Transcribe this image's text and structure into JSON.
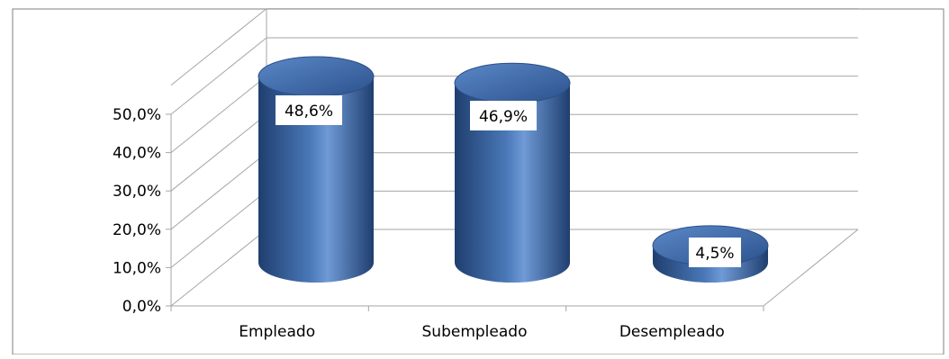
{
  "chart_data": {
    "type": "bar",
    "categories": [
      "Empleado",
      "Subempleado",
      "Desempleado"
    ],
    "values": [
      48.6,
      46.9,
      4.5
    ],
    "data_labels": [
      "48,6%",
      "46,9%",
      "4,5%"
    ],
    "y_ticks": [
      0,
      10,
      20,
      30,
      40,
      50
    ],
    "y_tick_labels": [
      "0,0%",
      "10,0%",
      "20,0%",
      "30,0%",
      "40,0%",
      "50,0%"
    ],
    "ylim": [
      0,
      50
    ],
    "grid": true,
    "legend": false,
    "bar_shape": "cylinder-3d",
    "title": "",
    "xlabel": "",
    "ylabel": "",
    "colors": {
      "bar_dark": "#1f3e6e",
      "bar_mid": "#4a78b8",
      "bar_light": "#6f9ad6",
      "grid": "#a6a6a6",
      "frame": "#7f7f7f",
      "text": "#000000"
    }
  }
}
